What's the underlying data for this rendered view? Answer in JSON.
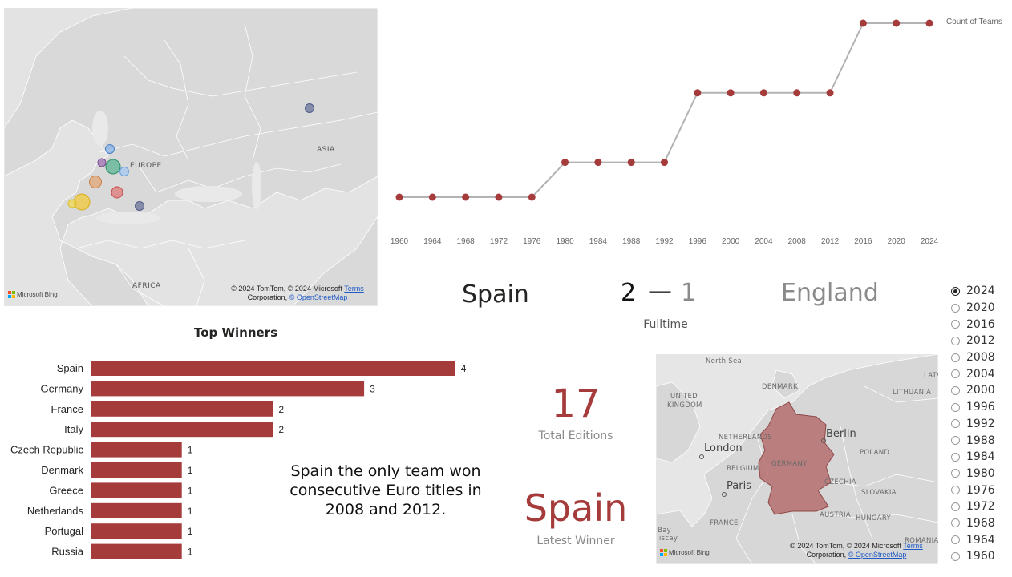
{
  "map_top": {
    "labels": {
      "europe": "EUROPE",
      "asia": "ASIA",
      "africa": "AFRICA"
    },
    "credit_line1": "© 2024 TomTom, © 2024 Microsoft",
    "credit_terms": "Terms",
    "credit_line2a": "Corporation,",
    "credit_osm": "© OpenStreetMap",
    "bing_label": "Microsoft Bing"
  },
  "line_chart": {
    "legend": "Count of Teams"
  },
  "chart_data": [
    {
      "type": "line",
      "x": [
        "1960",
        "1964",
        "1968",
        "1972",
        "1976",
        "1980",
        "1984",
        "1988",
        "1992",
        "1996",
        "2000",
        "2004",
        "2008",
        "2012",
        "2016",
        "2020",
        "2024"
      ],
      "series": [
        {
          "name": "Count of Teams",
          "values": [
            4,
            4,
            4,
            4,
            4,
            8,
            8,
            8,
            8,
            16,
            16,
            16,
            16,
            16,
            24,
            24,
            24
          ]
        }
      ],
      "color": "#a63b3b"
    },
    {
      "type": "bar",
      "title": "Top Winners",
      "categories": [
        "Spain",
        "Germany",
        "France",
        "Italy",
        "Czech Republic",
        "Denmark",
        "Greece",
        "Netherlands",
        "Portugal",
        "Russia"
      ],
      "values": [
        4,
        3,
        2,
        2,
        1,
        1,
        1,
        1,
        1,
        1
      ],
      "color": "#a63b3b"
    }
  ],
  "final": {
    "winner": "Spain",
    "winner_score": "2",
    "dash": "—",
    "loser_score": "1",
    "loser": "England",
    "status": "Fulltime"
  },
  "slicer": {
    "years": [
      "2024",
      "2020",
      "2016",
      "2012",
      "2008",
      "2004",
      "2000",
      "1996",
      "1992",
      "1988",
      "1984",
      "1980",
      "1976",
      "1972",
      "1968",
      "1964",
      "1960"
    ],
    "selected": "2024"
  },
  "note": {
    "line1": "Spain the only team won",
    "line2": "consecutive Euro titles in",
    "line3": "2008 and 2012."
  },
  "kpi": {
    "editions_value": "17",
    "editions_label": "Total Editions",
    "winner_value": "Spain",
    "winner_label": "Latest Winner"
  },
  "map_bottom": {
    "labels": {
      "north_sea": "North Sea",
      "denmark": "DENMARK",
      "united": "UNITED",
      "kingdom": "KINGDOM",
      "latv": "LATV",
      "lithuania": "LITHUANIA",
      "netherlands": "NETHERLANDS",
      "london": "London",
      "berlin": "Berlin",
      "poland": "POLAND",
      "belgium": "BELGIUM",
      "germany": "GERMANY",
      "paris": "Paris",
      "czechia": "CZECHIA",
      "slovakia": "SLOVAKIA",
      "france": "FRANCE",
      "austria": "AUSTRIA",
      "hungary": "HUNGARY",
      "romania": "ROMANIA",
      "bay": "Bay",
      "biscay": "iscay"
    },
    "credit_line1": "© 2024 TomTom, © 2024 Microsoft",
    "credit_terms": "Terms",
    "credit_line2a": "Corporation,",
    "credit_osm": "© OpenStreetMap",
    "bing_label": "Microsoft Bing",
    "highlight_color": "#b56a6a"
  }
}
